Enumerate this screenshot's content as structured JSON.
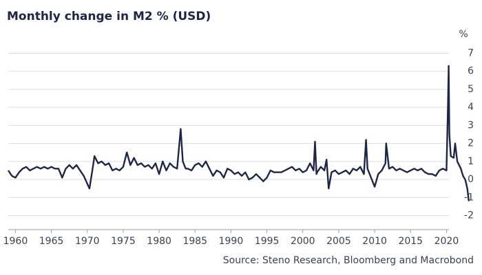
{
  "chart_data": {
    "type": "line",
    "title": "Monthly change in M2 % (USD)",
    "y_unit": "%",
    "source": "Source: Steno Research, Bloomberg and Macrobond",
    "x": [
      1959.0,
      1959.5,
      1960.0,
      1960.5,
      1961.0,
      1961.5,
      1962.0,
      1962.5,
      1963.0,
      1963.5,
      1964.0,
      1964.5,
      1965.0,
      1965.5,
      1966.0,
      1966.5,
      1967.0,
      1967.5,
      1968.0,
      1968.5,
      1969.0,
      1969.5,
      1970.3,
      1970.7,
      1971.0,
      1971.5,
      1972.0,
      1972.5,
      1973.0,
      1973.5,
      1974.0,
      1974.5,
      1975.0,
      1975.5,
      1976.0,
      1976.5,
      1977.0,
      1977.5,
      1978.0,
      1978.5,
      1979.0,
      1979.5,
      1980.0,
      1980.5,
      1981.0,
      1981.5,
      1982.0,
      1982.5,
      1983.0,
      1983.3,
      1983.7,
      1984.0,
      1984.5,
      1985.0,
      1985.5,
      1986.0,
      1986.5,
      1987.0,
      1987.5,
      1988.0,
      1988.5,
      1989.0,
      1989.5,
      1990.0,
      1990.5,
      1991.0,
      1991.5,
      1992.0,
      1992.5,
      1993.0,
      1993.5,
      1994.0,
      1994.5,
      1995.0,
      1995.5,
      1996.0,
      1996.5,
      1997.0,
      1997.5,
      1998.0,
      1998.5,
      1999.0,
      1999.5,
      2000.0,
      2000.5,
      2001.0,
      2001.5,
      2001.7,
      2001.9,
      2002.0,
      2002.5,
      2003.0,
      2003.3,
      2003.6,
      2004.0,
      2004.5,
      2005.0,
      2005.5,
      2006.0,
      2006.5,
      2007.0,
      2007.5,
      2008.0,
      2008.5,
      2008.8,
      2009.0,
      2009.5,
      2010.0,
      2010.5,
      2011.0,
      2011.5,
      2011.6,
      2012.0,
      2012.5,
      2013.0,
      2013.5,
      2014.0,
      2014.5,
      2015.0,
      2015.5,
      2016.0,
      2016.5,
      2017.0,
      2017.5,
      2018.0,
      2018.5,
      2019.0,
      2019.5,
      2020.0,
      2020.2,
      2020.3,
      2020.4,
      2020.6,
      2021.0,
      2021.2,
      2021.5,
      2022.0,
      2022.3,
      2022.6,
      2022.9,
      2023.1
    ],
    "series": [
      {
        "name": "M2",
        "color": "#1f2544",
        "values": [
          0.5,
          0.2,
          0.1,
          0.4,
          0.6,
          0.7,
          0.5,
          0.6,
          0.7,
          0.6,
          0.7,
          0.6,
          0.7,
          0.6,
          0.6,
          0.1,
          0.6,
          0.8,
          0.6,
          0.8,
          0.5,
          0.2,
          -0.5,
          0.5,
          1.3,
          0.9,
          1.0,
          0.8,
          0.9,
          0.5,
          0.6,
          0.5,
          0.7,
          1.5,
          0.8,
          1.2,
          0.8,
          0.9,
          0.7,
          0.8,
          0.6,
          0.9,
          0.3,
          1.0,
          0.5,
          0.9,
          0.7,
          0.6,
          2.8,
          1.0,
          0.6,
          0.6,
          0.5,
          0.8,
          0.9,
          0.7,
          1.0,
          0.6,
          0.2,
          0.5,
          0.4,
          0.1,
          0.6,
          0.5,
          0.3,
          0.4,
          0.2,
          0.4,
          0.0,
          0.1,
          0.3,
          0.1,
          -0.1,
          0.1,
          0.5,
          0.4,
          0.4,
          0.4,
          0.5,
          0.6,
          0.7,
          0.5,
          0.6,
          0.4,
          0.5,
          0.9,
          0.5,
          2.1,
          0.3,
          0.4,
          0.7,
          0.5,
          1.1,
          -0.5,
          0.4,
          0.5,
          0.3,
          0.4,
          0.5,
          0.3,
          0.6,
          0.5,
          0.7,
          0.3,
          2.2,
          0.6,
          0.1,
          -0.4,
          0.3,
          0.5,
          0.9,
          2.0,
          0.6,
          0.7,
          0.5,
          0.6,
          0.5,
          0.4,
          0.5,
          0.6,
          0.5,
          0.6,
          0.4,
          0.3,
          0.3,
          0.2,
          0.5,
          0.6,
          0.5,
          4.0,
          6.3,
          2.5,
          1.3,
          1.2,
          2.0,
          1.0,
          0.6,
          0.2,
          0.0,
          -0.5,
          -1.2
        ]
      }
    ],
    "xlim": [
      1959.0,
      2023.6
    ],
    "xticks": [
      1960,
      1965,
      1970,
      1975,
      1980,
      1985,
      1990,
      1995,
      2000,
      2005,
      2010,
      2015,
      2020
    ],
    "ylim": [
      -2.4,
      7.4
    ],
    "yticks": [
      -2,
      -1,
      0,
      1,
      2,
      3,
      4,
      5,
      6,
      7
    ],
    "grid": true
  }
}
